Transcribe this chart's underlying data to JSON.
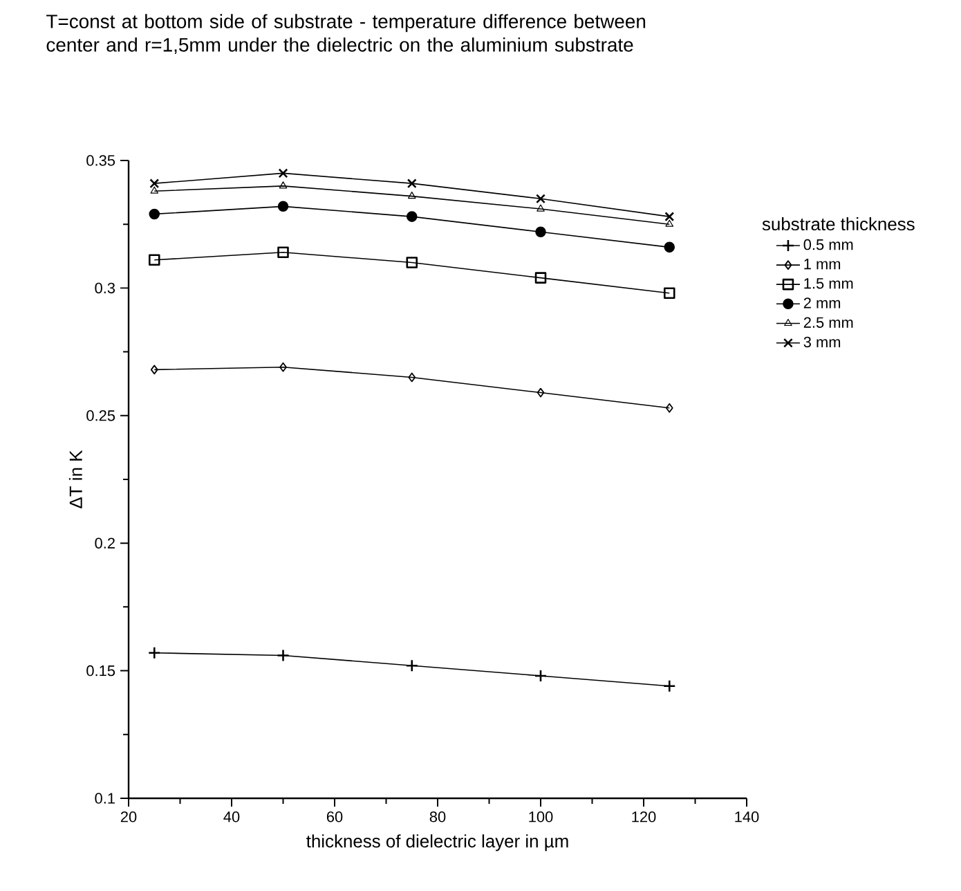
{
  "chart_data": {
    "type": "line",
    "title": "T=const at bottom side of substrate - temperature difference between center and r=1,5mm under the dielectric on the aluminium substrate",
    "xlabel": "thickness of dielectric layer in µm",
    "ylabel": "ΔT in K",
    "legend_title": "substrate thickness",
    "x": [
      25,
      50,
      75,
      100,
      125
    ],
    "series": [
      {
        "name": "0.5 mm",
        "color": "#000000",
        "marker": "plus",
        "values": [
          0.157,
          0.156,
          0.152,
          0.148,
          0.144
        ]
      },
      {
        "name": "1 mm",
        "color": "#000000",
        "marker": "diamond",
        "values": [
          0.268,
          0.269,
          0.265,
          0.259,
          0.253
        ]
      },
      {
        "name": "1.5 mm",
        "color": "#000000",
        "marker": "square",
        "values": [
          0.311,
          0.314,
          0.31,
          0.304,
          0.298
        ]
      },
      {
        "name": "2 mm",
        "color": "#000000",
        "marker": "circle",
        "values": [
          0.329,
          0.332,
          0.328,
          0.322,
          0.316
        ]
      },
      {
        "name": "2.5 mm",
        "color": "#000000",
        "marker": "triangle",
        "values": [
          0.338,
          0.34,
          0.336,
          0.331,
          0.325
        ]
      },
      {
        "name": "3 mm",
        "color": "#000000",
        "marker": "cross",
        "values": [
          0.341,
          0.345,
          0.341,
          0.335,
          0.328
        ]
      }
    ],
    "xlim": [
      20,
      140
    ],
    "ylim": [
      0.1,
      0.35
    ],
    "xticks": [
      20,
      40,
      60,
      80,
      100,
      120,
      140
    ],
    "yticks": [
      0.1,
      0.15,
      0.2,
      0.25,
      0.3,
      0.35
    ],
    "grid": false,
    "legend": "right",
    "line_style": "solid"
  }
}
